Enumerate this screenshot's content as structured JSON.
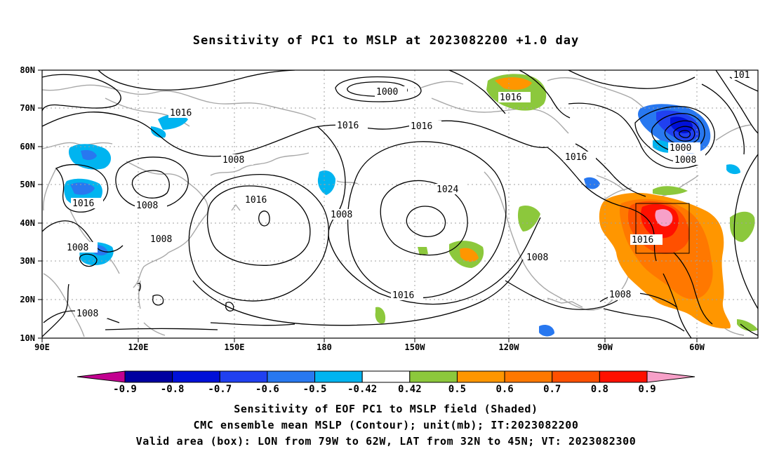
{
  "title": "Sensitivity of PC1 to MSLP at 2023082200 +1.0 day",
  "map": {
    "lon_labels": [
      "90E",
      "120E",
      "150E",
      "180",
      "150W",
      "120W",
      "90W",
      "60W"
    ],
    "lat_labels": [
      "80N",
      "70N",
      "60N",
      "50N",
      "40N",
      "30N",
      "20N",
      "10N"
    ],
    "contour_labels": [
      {
        "id": "c1",
        "text": "1000"
      },
      {
        "id": "c2",
        "text": "1016"
      },
      {
        "id": "c3",
        "text": "1016"
      },
      {
        "id": "c4",
        "text": "1016"
      },
      {
        "id": "c5",
        "text": "1016"
      },
      {
        "id": "c6",
        "text": "1008"
      },
      {
        "id": "c7",
        "text": "1024"
      },
      {
        "id": "c8",
        "text": "1016"
      },
      {
        "id": "c9",
        "text": "1008"
      },
      {
        "id": "c10",
        "text": "1016"
      },
      {
        "id": "c11",
        "text": "1008"
      },
      {
        "id": "c12",
        "text": "1008"
      },
      {
        "id": "c13",
        "text": "1008"
      },
      {
        "id": "c14",
        "text": "1016"
      },
      {
        "id": "c15",
        "text": "1008"
      },
      {
        "id": "c16",
        "text": "1016"
      },
      {
        "id": "c17",
        "text": "1000"
      },
      {
        "id": "c18",
        "text": "1008"
      },
      {
        "id": "c19",
        "text": "1016"
      },
      {
        "id": "c20",
        "text": "1008"
      },
      {
        "id": "c21",
        "text": "1008"
      },
      {
        "id": "c22",
        "text": "101"
      }
    ]
  },
  "colorbar": {
    "colors": [
      "#c20090",
      "#0000a0",
      "#0010d8",
      "#2040f0",
      "#2878f0",
      "#00b4f0",
      "#ffffff",
      "#8cc83c",
      "#ff9600",
      "#ff7800",
      "#ff5000",
      "#ff1000",
      "#f7a0c8"
    ],
    "labels": [
      "-0.9",
      "-0.8",
      "-0.7",
      "-0.6",
      "-0.5",
      "-0.42",
      "0.42",
      "0.5",
      "0.6",
      "0.7",
      "0.8",
      "0.9"
    ]
  },
  "captions": {
    "line1": "Sensitivity of EOF PC1 to MSLP field (Shaded)",
    "line2": "CMC ensemble mean MSLP (Contour); unit(mb); IT:2023082200",
    "line3": "Valid area (box): LON from 79W to 62W, LAT from 32N to 45N; VT: 2023082300"
  }
}
